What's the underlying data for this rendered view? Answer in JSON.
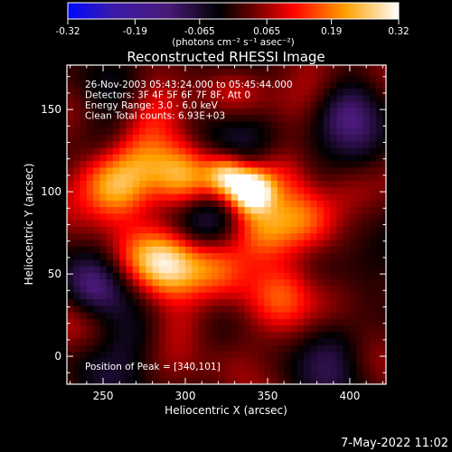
{
  "chart_data": {
    "type": "heatmap",
    "title": "Reconstructed RHESSI Image",
    "xlabel": "Heliocentric X (arcsec)",
    "ylabel": "Heliocentric Y (arcsec)",
    "xlim": [
      228,
      422
    ],
    "ylim": [
      -17,
      177
    ],
    "xticks": [
      250,
      300,
      350,
      400
    ],
    "yticks": [
      0,
      50,
      100,
      150
    ],
    "colorbar": {
      "ticks": [
        "-0.32",
        "-0.19",
        "-0.065",
        "0.065",
        "0.19",
        "0.32"
      ],
      "range": [
        -0.32,
        0.32
      ],
      "units_label": "(photons cm⁻² s⁻¹ asec⁻²)",
      "colormap": "blue-purple-black-red-orange-yellow-white"
    },
    "annotations": [
      "26-Nov-2003 05:43:24.000 to 05:45:44.000",
      "Detectors: 3F 4F 5F 6F 7F 8F, Att 0",
      "Energy Range: 3.0 - 6.0 keV",
      "Clean     Total counts: 6.93E+03"
    ],
    "peak_label": "Position of Peak = [340,101]",
    "peak": {
      "x": 340,
      "y": 101,
      "value": 0.32
    },
    "features": [
      {
        "x": 340,
        "y": 101,
        "value": 0.32
      },
      {
        "x": 325,
        "y": 110,
        "value": 0.24
      },
      {
        "x": 360,
        "y": 115,
        "value": 0.14
      },
      {
        "x": 300,
        "y": 108,
        "value": 0.18
      },
      {
        "x": 260,
        "y": 100,
        "value": 0.2
      },
      {
        "x": 248,
        "y": 110,
        "value": 0.12
      },
      {
        "x": 270,
        "y": 120,
        "value": 0.12
      },
      {
        "x": 290,
        "y": 55,
        "value": 0.19
      },
      {
        "x": 320,
        "y": 55,
        "value": 0.17
      },
      {
        "x": 345,
        "y": 75,
        "value": 0.16
      },
      {
        "x": 375,
        "y": 85,
        "value": 0.13
      },
      {
        "x": 400,
        "y": 100,
        "value": 0.11
      },
      {
        "x": 270,
        "y": 60,
        "value": 0.12
      },
      {
        "x": 360,
        "y": 40,
        "value": 0.12
      },
      {
        "x": 390,
        "y": 35,
        "value": 0.1
      },
      {
        "x": 300,
        "y": 20,
        "value": 0.09
      },
      {
        "x": 280,
        "y": 150,
        "value": 0.13
      },
      {
        "x": 330,
        "y": 160,
        "value": 0.1
      },
      {
        "x": 380,
        "y": 165,
        "value": 0.1
      },
      {
        "x": 235,
        "y": 20,
        "value": 0.07
      },
      {
        "x": 330,
        "y": 0,
        "value": 0.07
      },
      {
        "x": 410,
        "y": 125,
        "value": -0.08
      },
      {
        "x": 240,
        "y": 40,
        "value": -0.12
      },
      {
        "x": 395,
        "y": 145,
        "value": -0.09
      },
      {
        "x": 310,
        "y": 85,
        "value": -0.09
      },
      {
        "x": 250,
        "y": 130,
        "value": -0.07
      },
      {
        "x": 365,
        "y": 125,
        "value": -0.07
      },
      {
        "x": 270,
        "y": 10,
        "value": -0.08
      },
      {
        "x": 420,
        "y": 60,
        "value": -0.08
      },
      {
        "x": 345,
        "y": 140,
        "value": -0.06
      },
      {
        "x": 300,
        "y": 175,
        "value": -0.05
      },
      {
        "x": 390,
        "y": 5,
        "value": -0.07
      }
    ]
  },
  "footer": {
    "timestamp": "7-May-2022 11:02"
  }
}
